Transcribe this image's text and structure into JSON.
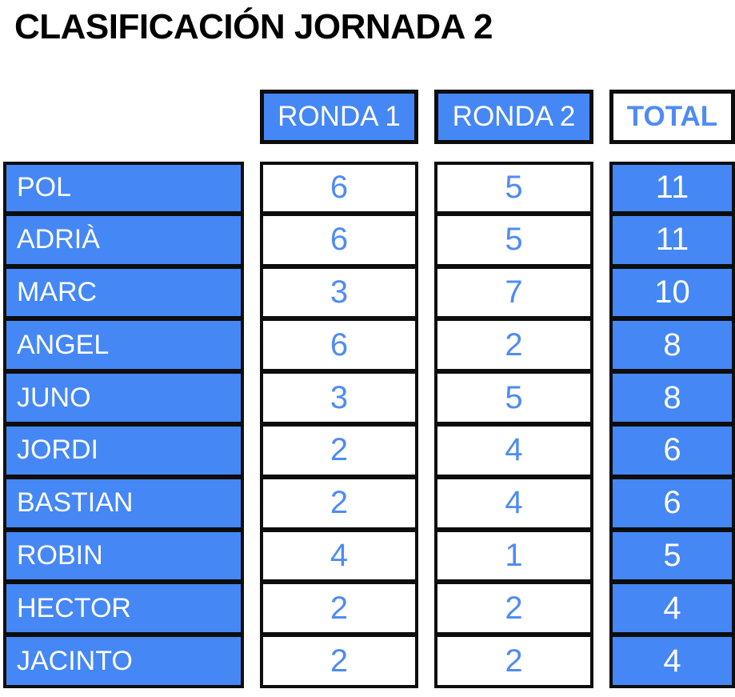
{
  "title": "CLASIFICACIÓN JORNADA 2",
  "header": {
    "ronda1": "RONDA 1",
    "ronda2": "RONDA 2",
    "total": "TOTAL"
  },
  "rows": [
    {
      "name": "POL",
      "r1": 6,
      "r2": 5,
      "total": 11
    },
    {
      "name": "ADRIÀ",
      "r1": 6,
      "r2": 5,
      "total": 11
    },
    {
      "name": "MARC",
      "r1": 3,
      "r2": 7,
      "total": 10
    },
    {
      "name": "ANGEL",
      "r1": 6,
      "r2": 2,
      "total": 8
    },
    {
      "name": "JUNO",
      "r1": 3,
      "r2": 5,
      "total": 8
    },
    {
      "name": "JORDI",
      "r1": 2,
      "r2": 4,
      "total": 6
    },
    {
      "name": "BASTIAN",
      "r1": 2,
      "r2": 4,
      "total": 6
    },
    {
      "name": "ROBIN",
      "r1": 4,
      "r2": 1,
      "total": 5
    },
    {
      "name": "HECTOR",
      "r1": 2,
      "r2": 2,
      "total": 4
    },
    {
      "name": "JACINTO",
      "r1": 2,
      "r2": 2,
      "total": 4
    }
  ],
  "colors": {
    "blue_fill": "#4587f4",
    "blue_text": "#4e8bf5",
    "border": "#0d0d0d"
  },
  "chart_data": {
    "type": "table",
    "title": "CLASIFICACIÓN JORNADA 2",
    "columns": [
      "",
      "RONDA 1",
      "RONDA 2",
      "TOTAL"
    ],
    "rows": [
      [
        "POL",
        6,
        5,
        11
      ],
      [
        "ADRIÀ",
        6,
        5,
        11
      ],
      [
        "MARC",
        3,
        7,
        10
      ],
      [
        "ANGEL",
        6,
        2,
        8
      ],
      [
        "JUNO",
        3,
        5,
        8
      ],
      [
        "JORDI",
        2,
        4,
        6
      ],
      [
        "BASTIAN",
        2,
        4,
        6
      ],
      [
        "ROBIN",
        4,
        1,
        5
      ],
      [
        "HECTOR",
        2,
        2,
        4
      ],
      [
        "JACINTO",
        2,
        2,
        4
      ]
    ],
    "layout_hints": {
      "name_column_style": "blue fill, white left-aligned text",
      "round_columns_style": "white fill, blue centered numbers",
      "total_column_style": "blue fill, white centered numbers",
      "grid": "separate bordered column panels with white gutters"
    }
  }
}
